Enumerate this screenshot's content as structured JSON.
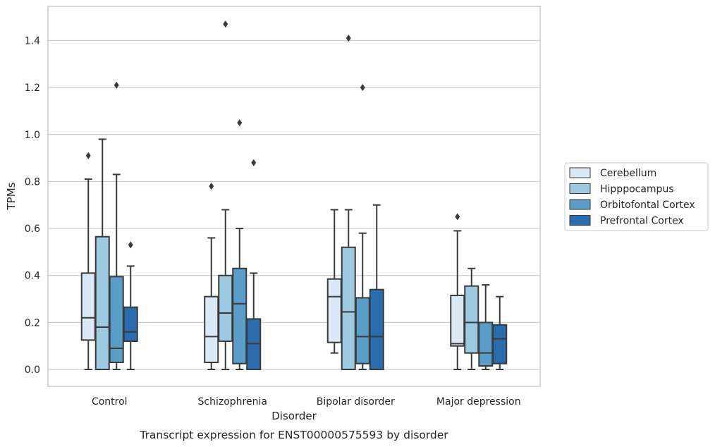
{
  "caption": "Transcript expression for ENST00000575593 by disorder",
  "chart_data": {
    "type": "box",
    "xlabel": "Disorder",
    "ylabel": "TPMs",
    "ylim": [
      -0.07,
      1.55
    ],
    "yticks": [
      0.0,
      0.2,
      0.4,
      0.6,
      0.8,
      1.0,
      1.2,
      1.4
    ],
    "ytick_labels": [
      "0.0",
      "0.2",
      "0.4",
      "0.6",
      "0.8",
      "1.0",
      "1.2",
      "1.4"
    ],
    "grid": "horizontal",
    "legend_position": "right",
    "categories": [
      "Control",
      "Schizophrenia",
      "Bipolar disorder",
      "Major depression"
    ],
    "series": [
      {
        "name": "Cerebellum",
        "color": "#dbe9f6",
        "boxes": [
          {
            "min": 0.0,
            "q1": 0.125,
            "median": 0.22,
            "q3": 0.41,
            "max": 0.81,
            "outliers": [
              0.91
            ]
          },
          {
            "min": 0.0,
            "q1": 0.03,
            "median": 0.14,
            "q3": 0.31,
            "max": 0.56,
            "outliers": [
              0.78
            ]
          },
          {
            "min": 0.07,
            "q1": 0.115,
            "median": 0.31,
            "q3": 0.385,
            "max": 0.68,
            "outliers": []
          },
          {
            "min": 0.0,
            "q1": 0.1,
            "median": 0.11,
            "q3": 0.315,
            "max": 0.59,
            "outliers": [
              0.65
            ]
          }
        ]
      },
      {
        "name": "Hipppocampus",
        "color": "#9dcae1",
        "boxes": [
          {
            "min": 0.0,
            "q1": 0.0,
            "median": 0.18,
            "q3": 0.565,
            "max": 0.98,
            "outliers": []
          },
          {
            "min": 0.0,
            "q1": 0.12,
            "median": 0.24,
            "q3": 0.4,
            "max": 0.68,
            "outliers": [
              1.47
            ]
          },
          {
            "min": 0.0,
            "q1": 0.0,
            "median": 0.245,
            "q3": 0.52,
            "max": 0.68,
            "outliers": [
              1.41
            ]
          },
          {
            "min": 0.0,
            "q1": 0.07,
            "median": 0.2,
            "q3": 0.355,
            "max": 0.43,
            "outliers": []
          }
        ]
      },
      {
        "name": "Orbitofontal Cortex",
        "color": "#5a9dc8",
        "boxes": [
          {
            "min": 0.0,
            "q1": 0.03,
            "median": 0.09,
            "q3": 0.395,
            "max": 0.83,
            "outliers": [
              1.21
            ]
          },
          {
            "min": 0.0,
            "q1": 0.025,
            "median": 0.28,
            "q3": 0.43,
            "max": 0.6,
            "outliers": [
              1.05
            ]
          },
          {
            "min": 0.0,
            "q1": 0.025,
            "median": 0.14,
            "q3": 0.305,
            "max": 0.58,
            "outliers": [
              1.2
            ]
          },
          {
            "min": 0.0,
            "q1": 0.015,
            "median": 0.07,
            "q3": 0.2,
            "max": 0.36,
            "outliers": []
          }
        ]
      },
      {
        "name": "Prefrontal Cortex",
        "color": "#2a6cad",
        "boxes": [
          {
            "min": 0.0,
            "q1": 0.12,
            "median": 0.16,
            "q3": 0.265,
            "max": 0.44,
            "outliers": [
              0.53
            ]
          },
          {
            "min": 0.0,
            "q1": 0.0,
            "median": 0.11,
            "q3": 0.215,
            "max": 0.41,
            "outliers": [
              0.88
            ]
          },
          {
            "min": 0.0,
            "q1": 0.0,
            "median": 0.14,
            "q3": 0.34,
            "max": 0.7,
            "outliers": []
          },
          {
            "min": 0.0,
            "q1": 0.025,
            "median": 0.13,
            "q3": 0.19,
            "max": 0.31,
            "outliers": []
          }
        ]
      }
    ]
  }
}
